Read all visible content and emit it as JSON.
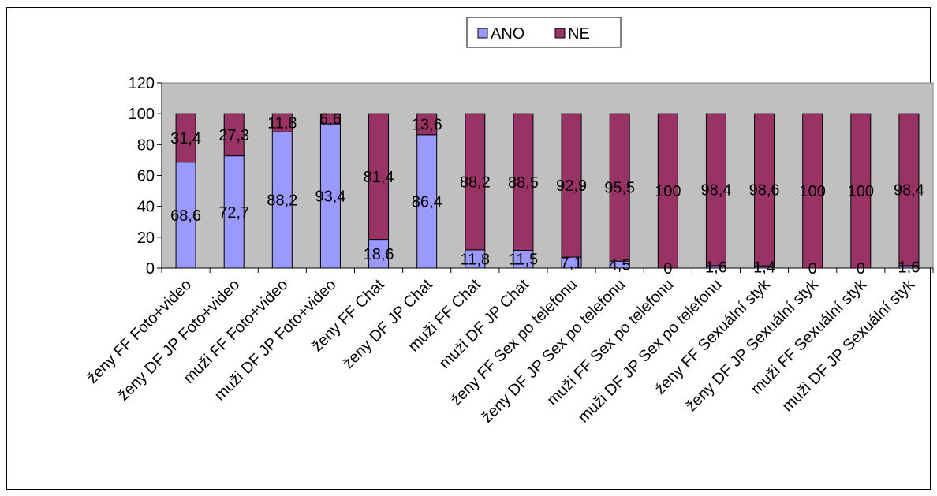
{
  "chart_data": {
    "type": "bar",
    "stacked": true,
    "categories": [
      "ženy FF Foto+video",
      "ženy DF JP Foto+video",
      "muži FF Foto+video",
      "muži DF JP Foto+video",
      "ženy FF Chat",
      "ženy DF JP Chat",
      "muži FF Chat",
      "muži DF JP Chat",
      "ženy FF Sex po telefonu",
      "ženy DF JP Sex po telefonu",
      "muži FF Sex po telefonu",
      "muži DF JP Sex po telefonu",
      "ženy FF Sexuální styk",
      "ženy DF JP Sexuální styk",
      "muži FF Sexuální styk",
      "muži DF JP Sexuální styk"
    ],
    "series": [
      {
        "name": "ANO",
        "color": "#9999ff",
        "values": [
          68.6,
          72.7,
          88.2,
          93.4,
          18.6,
          86.4,
          11.8,
          11.5,
          7.1,
          4.5,
          0,
          1.6,
          1.4,
          0,
          0,
          1.6
        ],
        "labels": [
          "68,6",
          "72,7",
          "88,2",
          "93,4",
          "18,6",
          "86,4",
          "11,8",
          "11,5",
          "7,1",
          "4,5",
          "0",
          "1,6",
          "1,4",
          "0",
          "0",
          "1,6"
        ]
      },
      {
        "name": "NE",
        "color": "#993366",
        "values": [
          31.4,
          27.3,
          11.8,
          6.6,
          81.4,
          13.6,
          88.2,
          88.5,
          92.9,
          95.5,
          100,
          98.4,
          98.6,
          100,
          100,
          98.4
        ],
        "labels": [
          "31,4",
          "27,3",
          "11,8",
          "6,6",
          "81,4",
          "13,6",
          "88,2",
          "88,5",
          "92,9",
          "95,5",
          "100",
          "98,4",
          "98,6",
          "100",
          "100",
          "98,4"
        ]
      }
    ],
    "ylim": [
      0,
      120
    ],
    "yticks": [
      "0",
      "20",
      "40",
      "60",
      "80",
      "100",
      "120"
    ],
    "plot_background": "#c0c0c0",
    "grid": false,
    "legend": "top"
  }
}
